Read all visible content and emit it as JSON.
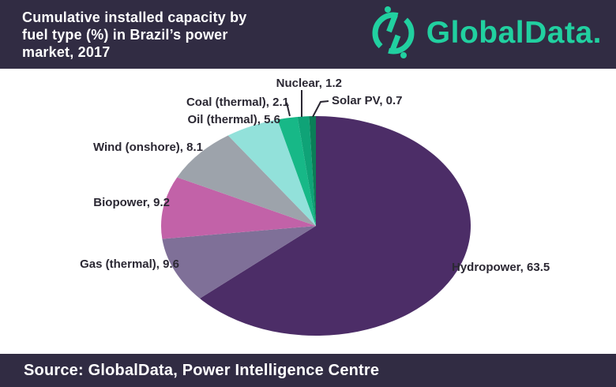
{
  "header": {
    "title_lines": [
      "Cumulative installed capacity by",
      "fuel type (%) in Brazil’s power",
      "market, 2017"
    ],
    "logo_text": "GlobalData."
  },
  "footer": {
    "source": "Source: GlobalData, Power Intelligence Centre"
  },
  "colors": {
    "header_bg": "#312c43",
    "brand_teal": "#21d0a0",
    "label_text": "#2b2833",
    "chart_bg": "#ffffff"
  },
  "chart_data": {
    "type": "pie",
    "title": "Cumulative installed capacity by fuel type (%) in Brazil's power market, 2017",
    "unit": "%",
    "start_angle_deg": 0,
    "direction": "clockwise",
    "legend_position": "labels-outside",
    "slices": [
      {
        "label": "Hydropower",
        "value": 63.5,
        "color": "#4c2d67"
      },
      {
        "label": "Gas (thermal)",
        "value": 9.6,
        "color": "#7f7098"
      },
      {
        "label": "Biopower",
        "value": 9.2,
        "color": "#c262a8"
      },
      {
        "label": "Wind (onshore)",
        "value": 8.1,
        "color": "#9da3ab"
      },
      {
        "label": "Oil (thermal)",
        "value": 5.6,
        "color": "#92e1da"
      },
      {
        "label": "Coal (thermal)",
        "value": 2.1,
        "color": "#17b887"
      },
      {
        "label": "Nuclear",
        "value": 1.2,
        "color": "#0fa377"
      },
      {
        "label": "Solar PV",
        "value": 0.7,
        "color": "#0a7e57"
      }
    ]
  }
}
